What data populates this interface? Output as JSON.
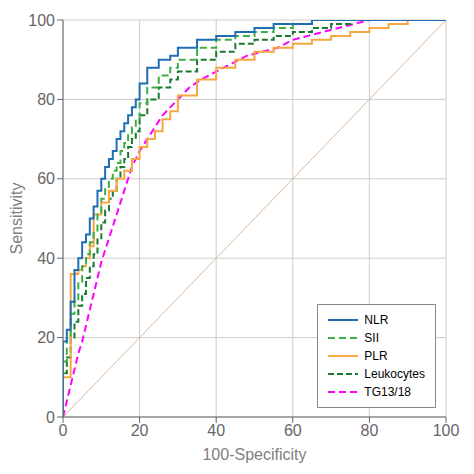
{
  "chart_data": {
    "type": "line",
    "title": "",
    "xlabel": "100-Specificity",
    "ylabel": "Sensitivity",
    "xlim": [
      0,
      100
    ],
    "ylim": [
      0,
      100
    ],
    "xticks": [
      0,
      20,
      40,
      60,
      80,
      100
    ],
    "yticks": [
      0,
      20,
      40,
      60,
      80,
      100
    ],
    "grid": true,
    "legend": "lower right",
    "reference": {
      "x": [
        0,
        100
      ],
      "values": [
        0,
        100
      ],
      "color": "#dbb89a"
    },
    "series": [
      {
        "name": "NLR",
        "color": "#1f6eb5",
        "line_style": "solid",
        "x": [
          0,
          0,
          1,
          1,
          2,
          2,
          3,
          3,
          4,
          4,
          5,
          5,
          6,
          6,
          7,
          7,
          8,
          8,
          9,
          9,
          10,
          10,
          11,
          11,
          12,
          12,
          13,
          13,
          14,
          14,
          15,
          15,
          16,
          16,
          17,
          17,
          18,
          18,
          19,
          19,
          20,
          20,
          22,
          22,
          25,
          25,
          28,
          28,
          30,
          30,
          35,
          35,
          40,
          40,
          45,
          45,
          50,
          50,
          55,
          55,
          60,
          60,
          65,
          65,
          70,
          70,
          75,
          75,
          80,
          80,
          85,
          85,
          90,
          90,
          95,
          95,
          100,
          100
        ],
        "values": [
          0,
          19,
          19,
          22,
          22,
          29,
          29,
          37,
          37,
          40,
          40,
          44,
          44,
          46,
          46,
          50,
          50,
          53,
          53,
          57,
          57,
          60,
          60,
          63,
          63,
          65,
          65,
          67,
          67,
          70,
          70,
          72,
          72,
          74,
          74,
          76,
          76,
          78,
          78,
          80,
          80,
          84,
          84,
          88,
          88,
          90,
          90,
          91,
          91,
          93,
          93,
          95,
          95,
          96,
          96,
          97,
          97,
          98,
          98,
          99,
          99,
          99,
          99,
          100,
          100,
          100,
          100,
          100,
          100,
          100,
          100,
          100,
          100,
          100,
          100,
          100,
          100,
          100
        ]
      },
      {
        "name": "SII",
        "color": "#3cb043",
        "line_style": "dashed",
        "x": [
          0,
          0,
          1,
          1,
          2,
          2,
          3,
          3,
          4,
          4,
          5,
          5,
          6,
          6,
          7,
          7,
          8,
          8,
          9,
          9,
          10,
          10,
          11,
          11,
          12,
          12,
          13,
          13,
          14,
          14,
          15,
          15,
          16,
          16,
          17,
          17,
          18,
          18,
          19,
          19,
          20,
          20,
          22,
          22,
          25,
          25,
          28,
          28,
          30,
          30,
          35,
          35,
          40,
          40,
          45,
          45,
          50,
          50,
          55,
          55,
          60,
          60,
          65,
          65,
          70,
          70,
          75,
          75,
          80,
          80,
          85,
          85,
          90,
          90,
          95,
          95,
          100,
          100
        ],
        "values": [
          0,
          14,
          14,
          20,
          20,
          26,
          26,
          29,
          29,
          34,
          34,
          38,
          38,
          41,
          41,
          44,
          44,
          47,
          47,
          51,
          51,
          55,
          55,
          58,
          58,
          60,
          60,
          62,
          62,
          64,
          64,
          67,
          67,
          69,
          69,
          71,
          71,
          73,
          73,
          75,
          75,
          79,
          79,
          83,
          83,
          86,
          86,
          88,
          88,
          90,
          90,
          93,
          93,
          95,
          95,
          96,
          96,
          97,
          97,
          98,
          98,
          99,
          99,
          100,
          100,
          100,
          100,
          100,
          100,
          100,
          100,
          100,
          100,
          100,
          100,
          100,
          100,
          100
        ]
      },
      {
        "name": "PLR",
        "color": "#f5a742",
        "line_style": "solid",
        "x": [
          0,
          0,
          2,
          2,
          4,
          4,
          5,
          5,
          6,
          6,
          7,
          7,
          8,
          8,
          10,
          10,
          12,
          12,
          14,
          14,
          16,
          16,
          18,
          18,
          20,
          20,
          22,
          22,
          24,
          24,
          26,
          26,
          28,
          28,
          30,
          30,
          35,
          35,
          40,
          40,
          45,
          45,
          50,
          50,
          55,
          55,
          60,
          60,
          65,
          65,
          70,
          70,
          75,
          75,
          80,
          80,
          85,
          85,
          90,
          90,
          95,
          95,
          100,
          100
        ],
        "values": [
          0,
          10,
          10,
          36,
          36,
          37,
          37,
          38,
          38,
          40,
          40,
          43,
          43,
          51,
          51,
          54,
          54,
          57,
          57,
          60,
          60,
          62,
          62,
          65,
          65,
          68,
          68,
          70,
          70,
          72,
          72,
          75,
          75,
          77,
          77,
          81,
          81,
          85,
          85,
          88,
          88,
          90,
          90,
          92,
          92,
          93,
          93,
          94,
          94,
          95,
          95,
          96,
          96,
          97,
          97,
          98,
          98,
          99,
          99,
          100,
          100,
          100,
          100,
          100
        ]
      },
      {
        "name": "Leukocytes",
        "color": "#1a7a30",
        "line_style": "dashed",
        "x": [
          0,
          0,
          1,
          1,
          2,
          2,
          3,
          3,
          4,
          4,
          5,
          5,
          6,
          6,
          7,
          7,
          8,
          8,
          9,
          9,
          10,
          10,
          11,
          11,
          12,
          12,
          13,
          13,
          14,
          14,
          15,
          15,
          16,
          16,
          17,
          17,
          18,
          18,
          19,
          19,
          20,
          20,
          22,
          22,
          25,
          25,
          28,
          28,
          30,
          30,
          35,
          35,
          40,
          40,
          45,
          45,
          50,
          50,
          55,
          55,
          60,
          60,
          65,
          65,
          70,
          70,
          75,
          75,
          80,
          80,
          85,
          85,
          90,
          90,
          95,
          95,
          100,
          100
        ],
        "values": [
          0,
          11,
          11,
          15,
          15,
          20,
          20,
          24,
          24,
          28,
          28,
          31,
          31,
          35,
          35,
          38,
          38,
          41,
          41,
          45,
          45,
          49,
          49,
          52,
          52,
          55,
          55,
          57,
          57,
          60,
          60,
          63,
          63,
          65,
          65,
          68,
          68,
          70,
          70,
          72,
          72,
          76,
          76,
          80,
          80,
          83,
          83,
          85,
          85,
          87,
          87,
          90,
          90,
          92,
          92,
          94,
          94,
          95,
          95,
          96,
          96,
          97,
          97,
          98,
          98,
          99,
          99,
          100,
          100,
          100,
          100,
          100,
          100,
          100,
          100,
          100,
          100,
          100
        ]
      },
      {
        "name": "TG13/18",
        "color": "#ff00ff",
        "line_style": "dashed",
        "x": [
          0,
          1,
          2,
          3,
          4,
          5,
          6,
          7,
          8,
          9,
          10,
          12,
          14,
          16,
          18,
          20,
          22,
          24,
          26,
          28,
          30,
          33,
          36,
          40,
          44,
          48,
          52,
          56,
          60,
          64,
          68,
          72,
          76,
          80,
          85,
          90,
          95,
          100
        ],
        "values": [
          0,
          4,
          8,
          12,
          16,
          19,
          23,
          27,
          31,
          35,
          39,
          45,
          51,
          57,
          63,
          67,
          70,
          73,
          76,
          78,
          80,
          83,
          85,
          87,
          89,
          91,
          92,
          93,
          95,
          96,
          97,
          98,
          99,
          100,
          100,
          100,
          100,
          100
        ]
      }
    ]
  }
}
